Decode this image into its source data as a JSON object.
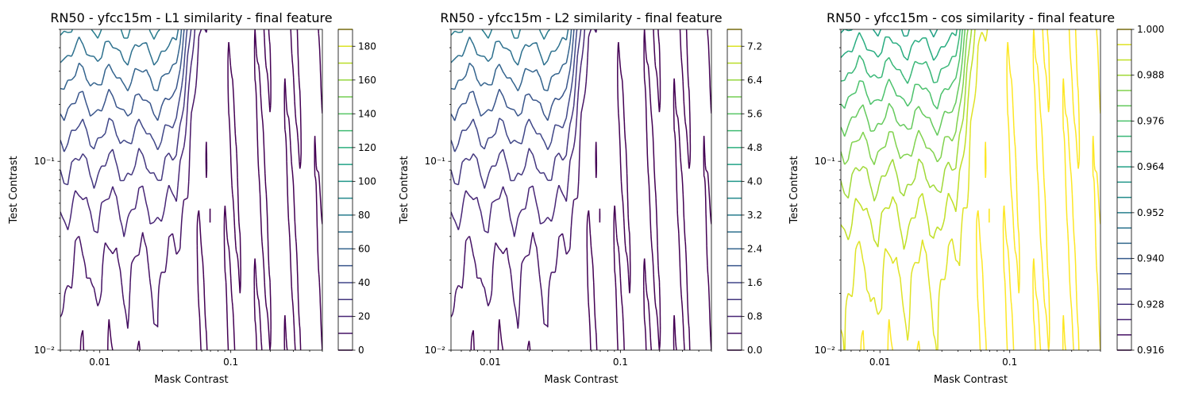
{
  "chart_data": [
    {
      "type": "contour",
      "title": "RN50 - yfcc15m - L1 similarity - final feature",
      "xlabel": "Mask Contrast",
      "ylabel": "Test Contrast",
      "xscale": "log",
      "yscale": "log",
      "xlim": [
        0.005,
        0.5
      ],
      "ylim": [
        0.01,
        0.5
      ],
      "x_ticks": [
        {
          "value": 0.01,
          "label": "0.01"
        },
        {
          "value": 0.1,
          "label": "0.1"
        }
      ],
      "y_ticks": [
        {
          "value": 0.01,
          "label": "10⁻²"
        },
        {
          "value": 0.1,
          "label": "10⁻¹"
        }
      ],
      "colorbar": {
        "min": 0,
        "max": 190,
        "tick_labels": [
          "0",
          "20",
          "40",
          "60",
          "80",
          "100",
          "120",
          "140",
          "160",
          "180"
        ],
        "tick_values": [
          0,
          20,
          40,
          60,
          80,
          100,
          120,
          140,
          160,
          180
        ]
      },
      "levels": [
        0,
        10,
        20,
        30,
        40,
        50,
        60,
        70,
        80,
        90,
        100,
        110,
        120,
        130,
        140,
        150,
        160,
        170,
        180,
        190
      ],
      "field": {
        "base": 0.0,
        "scale": 64.0,
        "cos_transform": false
      }
    },
    {
      "type": "contour",
      "title": "RN50 - yfcc15m - L2 similarity - final feature",
      "xlabel": "Mask Contrast",
      "ylabel": "Test Contrast",
      "xscale": "log",
      "yscale": "log",
      "xlim": [
        0.005,
        0.5
      ],
      "ylim": [
        0.01,
        0.5
      ],
      "x_ticks": [
        {
          "value": 0.01,
          "label": "0.01"
        },
        {
          "value": 0.1,
          "label": "0.1"
        }
      ],
      "y_ticks": [
        {
          "value": 0.01,
          "label": "10⁻²"
        },
        {
          "value": 0.1,
          "label": "10⁻¹"
        }
      ],
      "colorbar": {
        "min": 0.0,
        "max": 7.6,
        "tick_labels": [
          "0.0",
          "0.8",
          "1.6",
          "2.4",
          "3.2",
          "4.0",
          "4.8",
          "5.6",
          "6.4",
          "7.2"
        ],
        "tick_values": [
          0.0,
          0.8,
          1.6,
          2.4,
          3.2,
          4.0,
          4.8,
          5.6,
          6.4,
          7.2
        ]
      },
      "levels": [
        0.0,
        0.4,
        0.8,
        1.2,
        1.6,
        2.0,
        2.4,
        2.8,
        3.2,
        3.6,
        4.0,
        4.4,
        4.8,
        5.2,
        5.6,
        6.0,
        6.4,
        6.8,
        7.2,
        7.6
      ],
      "field": {
        "base": 0.0,
        "scale": 2.56,
        "cos_transform": false
      }
    },
    {
      "type": "contour",
      "title": "RN50 - yfcc15m - cos similarity - final feature",
      "xlabel": "Mask Contrast",
      "ylabel": "Test Contrast",
      "xscale": "log",
      "yscale": "log",
      "xlim": [
        0.005,
        0.5
      ],
      "ylim": [
        0.01,
        0.5
      ],
      "x_ticks": [
        {
          "value": 0.01,
          "label": "0.01"
        },
        {
          "value": 0.1,
          "label": "0.1"
        }
      ],
      "y_ticks": [
        {
          "value": 0.01,
          "label": "10⁻²"
        },
        {
          "value": 0.1,
          "label": "10⁻¹"
        }
      ],
      "colorbar": {
        "min": 0.916,
        "max": 1.0,
        "tick_labels": [
          "0.916",
          "0.928",
          "0.940",
          "0.952",
          "0.964",
          "0.976",
          "0.988",
          "1.000"
        ],
        "tick_values": [
          0.916,
          0.928,
          0.94,
          0.952,
          0.964,
          0.976,
          0.988,
          1.0
        ]
      },
      "levels": [
        0.916,
        0.92,
        0.924,
        0.928,
        0.932,
        0.936,
        0.94,
        0.944,
        0.948,
        0.952,
        0.956,
        0.96,
        0.964,
        0.968,
        0.972,
        0.976,
        0.98,
        0.984,
        0.988,
        0.992,
        0.996,
        1.0
      ],
      "field": {
        "base": 1.0,
        "scale": -0.0285,
        "cos_transform": true
      }
    }
  ]
}
